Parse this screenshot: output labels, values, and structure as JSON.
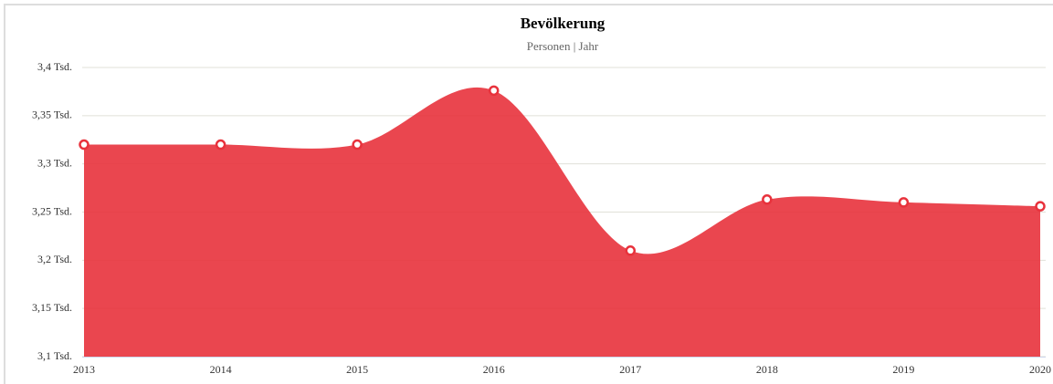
{
  "chart_data": {
    "type": "area",
    "title": "Bevölkerung",
    "subtitle": "Personen | Jahr",
    "categories": [
      "2013",
      "2014",
      "2015",
      "2016",
      "2017",
      "2018",
      "2019",
      "2020"
    ],
    "series": [
      {
        "name": "Bevölkerung",
        "color": "#e8323c",
        "values": [
          3320,
          3320,
          3320,
          3376,
          3210,
          3263,
          3260,
          3256
        ]
      }
    ],
    "ylim": [
      3100,
      3400
    ],
    "yticks": [
      {
        "value": 3100,
        "label": "3,1 Tsd."
      },
      {
        "value": 3150,
        "label": "3,15 Tsd."
      },
      {
        "value": 3200,
        "label": "3,2 Tsd."
      },
      {
        "value": 3250,
        "label": "3,25 Tsd."
      },
      {
        "value": 3300,
        "label": "3,3 Tsd."
      },
      {
        "value": 3350,
        "label": "3,35 Tsd."
      },
      {
        "value": 3400,
        "label": "3,4 Tsd."
      }
    ],
    "grid": true
  }
}
